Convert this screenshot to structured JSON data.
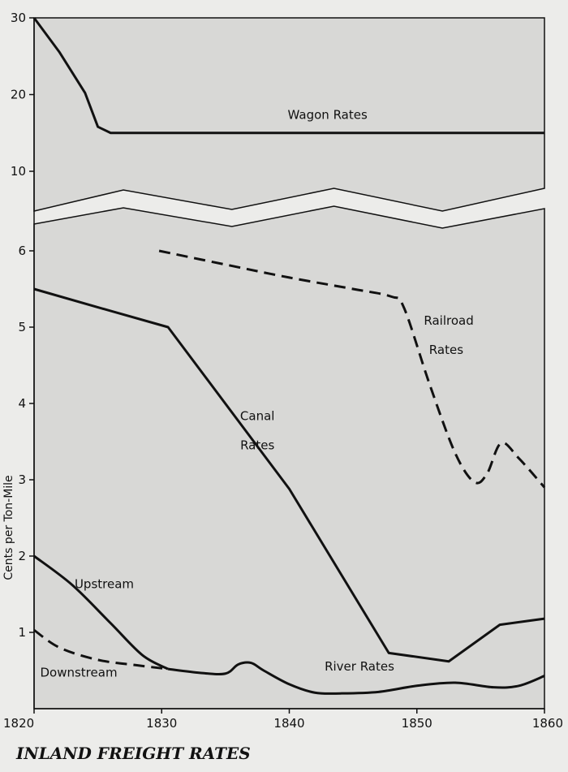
{
  "chart_data": {
    "type": "line",
    "title": "INLAND FREIGHT RATES",
    "xlabel": "",
    "ylabel": "Cents per Ton-Mile",
    "xlim": [
      1820,
      1860
    ],
    "ylim_lower": [
      0,
      6.5
    ],
    "ylim_upper": [
      5,
      30
    ],
    "axis_break": "between 6.5 and 5 (zig-zag break, upper panel compressed scale)",
    "x_ticks": [
      1820,
      1830,
      1840,
      1850,
      1860
    ],
    "y_ticks_lower": [
      1,
      2,
      3,
      4,
      5,
      6
    ],
    "y_ticks_upper": [
      10,
      20,
      30
    ],
    "grid": false,
    "background_color": "#d8d8d6",
    "line_color": "#111111",
    "series": [
      {
        "name": "Wagon Rates",
        "panel": "upper",
        "style": "solid",
        "x": [
          1820,
          1822,
          1824,
          1825,
          1826,
          1830,
          1840,
          1850,
          1860
        ],
        "y": [
          30,
          25.5,
          20.2,
          15.8,
          15,
          15,
          15,
          15,
          15
        ]
      },
      {
        "name": "Railroad Rates",
        "panel": "lower",
        "style": "dashed",
        "x": [
          1829.8,
          1835,
          1840,
          1845,
          1848,
          1849,
          1851,
          1853,
          1854.5,
          1855.5,
          1856.6,
          1858,
          1860
        ],
        "y": [
          6.0,
          5.82,
          5.65,
          5.5,
          5.4,
          5.25,
          4.25,
          3.35,
          2.97,
          3.08,
          3.48,
          3.28,
          2.9
        ]
      },
      {
        "name": "Canal Rates",
        "panel": "lower",
        "style": "solid",
        "x": [
          1820,
          1825,
          1830.5,
          1840,
          1847.8,
          1852.5,
          1856.5,
          1860
        ],
        "y": [
          5.5,
          5.26,
          5.0,
          2.88,
          0.73,
          0.62,
          1.1,
          1.18
        ]
      },
      {
        "name": "Upstream",
        "panel": "lower",
        "style": "solid",
        "x": [
          1820,
          1823,
          1826,
          1828.5,
          1830.5
        ],
        "y": [
          2.0,
          1.62,
          1.12,
          0.7,
          0.52
        ]
      },
      {
        "name": "Downstream",
        "panel": "lower",
        "style": "dashed",
        "x": [
          1820,
          1822,
          1825,
          1828,
          1830.5
        ],
        "y": [
          1.03,
          0.8,
          0.64,
          0.57,
          0.52
        ]
      },
      {
        "name": "River Rates",
        "panel": "lower",
        "style": "solid",
        "x": [
          1830.5,
          1833,
          1835,
          1836,
          1837,
          1838,
          1840,
          1842,
          1844,
          1847,
          1850,
          1853,
          1856,
          1858,
          1860
        ],
        "y": [
          0.52,
          0.47,
          0.46,
          0.58,
          0.6,
          0.5,
          0.32,
          0.21,
          0.2,
          0.22,
          0.3,
          0.34,
          0.28,
          0.3,
          0.43
        ]
      }
    ],
    "annotations": [
      {
        "text": "Wagon Rates",
        "x": 1843,
        "y": 16.8,
        "panel": "upper"
      },
      {
        "text": "Railroad",
        "x": 1852.5,
        "y": 5.03,
        "panel": "lower"
      },
      {
        "text": "Rates",
        "x": 1852.3,
        "y": 4.65,
        "panel": "lower"
      },
      {
        "text": "Canal",
        "x": 1837.5,
        "y": 3.78,
        "panel": "lower"
      },
      {
        "text": "Rates",
        "x": 1837.5,
        "y": 3.4,
        "panel": "lower"
      },
      {
        "text": "Upstream",
        "x": 1825.5,
        "y": 1.58,
        "panel": "lower"
      },
      {
        "text": "Downstream",
        "x": 1823.5,
        "y": 0.42,
        "panel": "lower"
      },
      {
        "text": "River Rates",
        "x": 1845.5,
        "y": 0.5,
        "panel": "lower"
      }
    ]
  }
}
